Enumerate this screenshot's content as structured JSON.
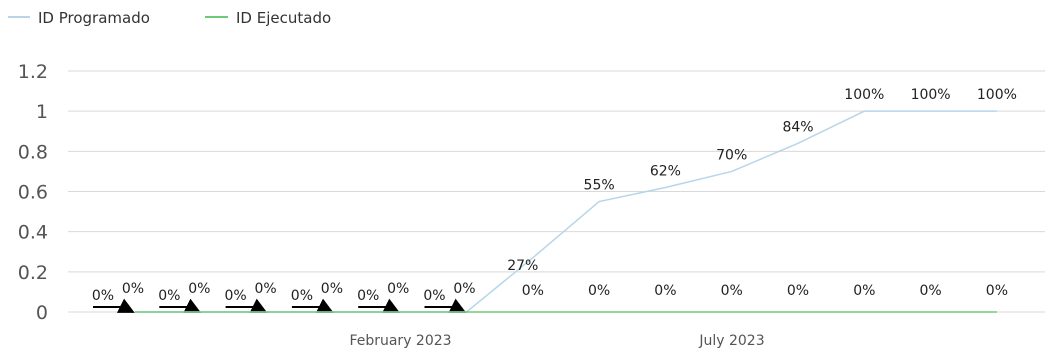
{
  "chart_data": {
    "type": "line",
    "title": "",
    "xlabel": "",
    "ylabel": "",
    "ylim": [
      0,
      1.2
    ],
    "yticks": [
      "0",
      "0.2",
      "0.4",
      "0.6",
      "0.8",
      "1",
      "1.2"
    ],
    "xtick_labels": [
      {
        "label": "February 2023",
        "index": 5
      },
      {
        "label": "July 2023",
        "index": 10
      }
    ],
    "grid": true,
    "legend_position": "top-left",
    "points": 14,
    "series": [
      {
        "name": "ID Programado",
        "color": "#b7d6ea",
        "values": [
          0,
          0,
          0,
          0,
          0,
          0,
          0.27,
          0.55,
          0.62,
          0.7,
          0.84,
          1,
          1,
          1
        ],
        "labels": [
          "0%",
          "0%",
          "0%",
          "0%",
          "0%",
          "0%",
          "27%",
          "55%",
          "62%",
          "70%",
          "84%",
          "100%",
          "100%",
          "100%"
        ]
      },
      {
        "name": "ID Ejecutado",
        "color": "#70c97a",
        "values": [
          0,
          0,
          0,
          0,
          0,
          0,
          0,
          0,
          0,
          0,
          0,
          0,
          0,
          0
        ],
        "labels": [
          "0%",
          "0%",
          "0%",
          "0%",
          "0%",
          "0%",
          "0%",
          "0%",
          "0%",
          "0%",
          "0%",
          "0%",
          "0%",
          "0%"
        ]
      }
    ]
  }
}
